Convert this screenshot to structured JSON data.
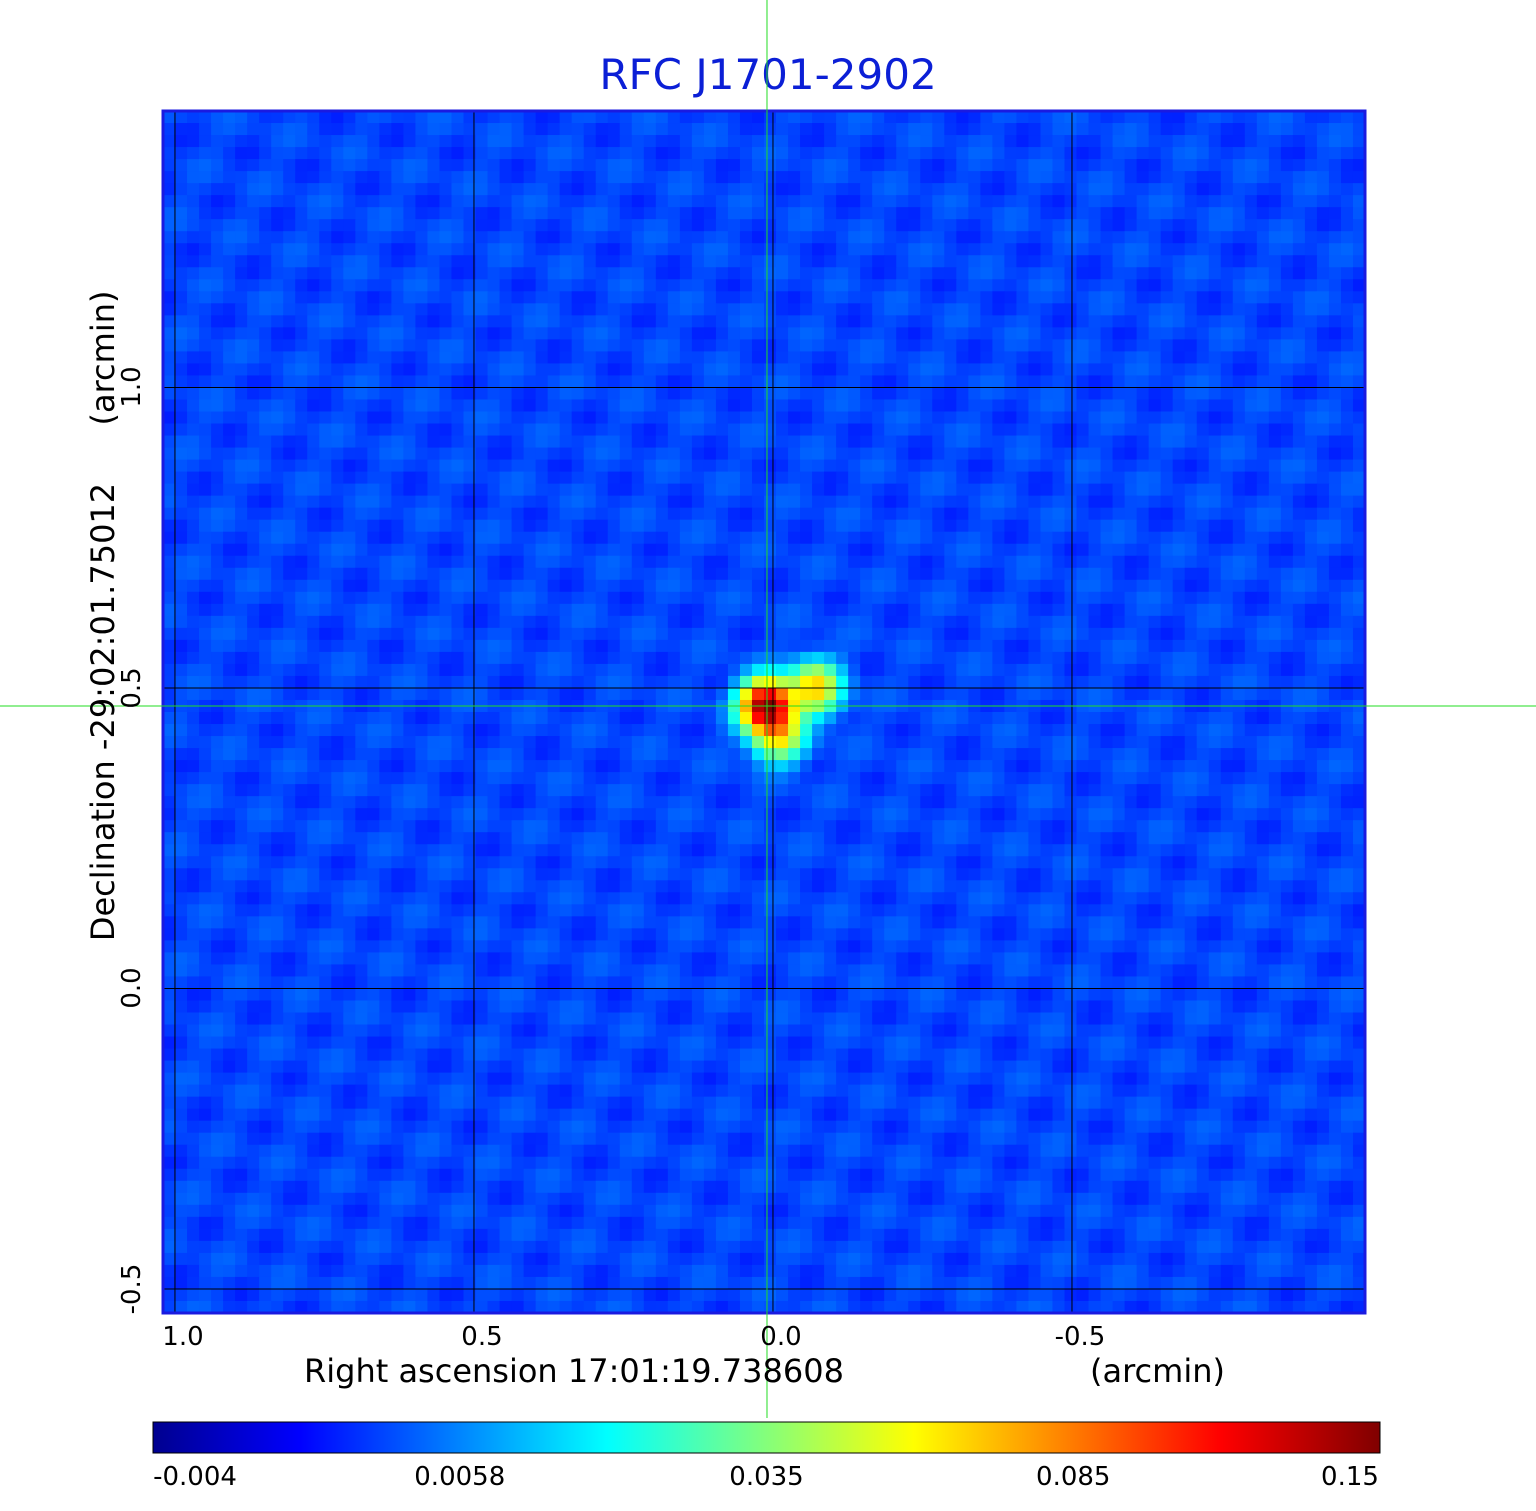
{
  "chart_data": {
    "type": "heatmap",
    "title": "RFC J1701-2902",
    "x_axis": {
      "label": "Right ascension  17:01:19.738608",
      "unit": "(arcmin)",
      "ticks": [
        "1.0",
        "0.5",
        "0.0",
        "-0.5"
      ],
      "tick_values": [
        1.0,
        0.5,
        0.0,
        -0.5
      ],
      "range": [
        1.02,
        -0.99
      ]
    },
    "y_axis": {
      "label": "Declination  -29:02:01.75012",
      "unit": "(arcmin)",
      "ticks": [
        "1.0",
        "0.5",
        "0.0",
        "-0.5"
      ],
      "tick_values": [
        1.0,
        0.5,
        0.0,
        -0.5
      ],
      "range": [
        -0.54,
        1.46
      ]
    },
    "grid": true,
    "crosshair": {
      "x": 0.01,
      "y": 0.47,
      "color": "#22dd22"
    },
    "colorbar": {
      "ticks": [
        "-0.004",
        "0.0058",
        "0.035",
        "0.085",
        "0.15"
      ],
      "tick_values": [
        -0.004,
        0.0058,
        0.035,
        0.085,
        0.15
      ],
      "colormap": "jet"
    },
    "sources": [
      {
        "x": 0.01,
        "y": 0.47,
        "peak": 0.15
      },
      {
        "x": -0.07,
        "y": 0.5,
        "peak": 0.06
      },
      {
        "x": -0.01,
        "y": 0.42,
        "peak": 0.05
      }
    ],
    "background_level": 0.0,
    "colors": {
      "title": "#0b1fd6",
      "frame": "#1a1ae0",
      "grid": "#000000",
      "crosshair": "#22dd22"
    }
  }
}
